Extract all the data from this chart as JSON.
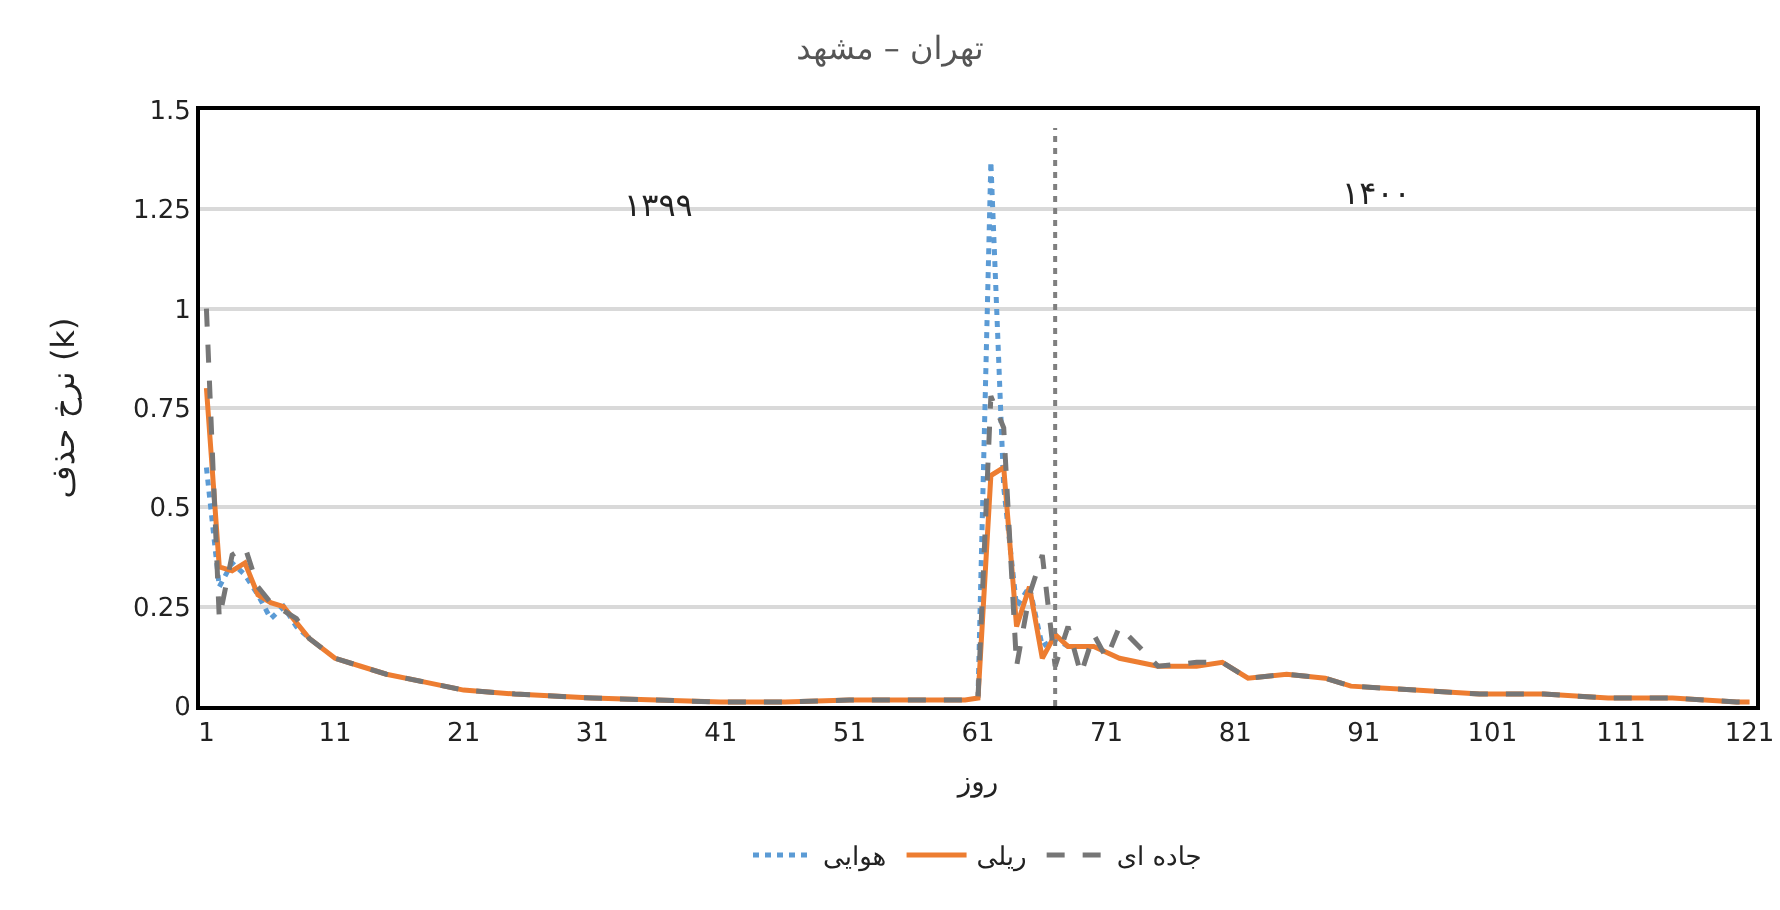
{
  "chart_data": {
    "type": "line",
    "title": "تهران – مشهد",
    "xlabel": "روز",
    "ylabel": "نرخ حذف (k)",
    "xlim": [
      0.5,
      121.5
    ],
    "xticks": [
      1,
      11,
      21,
      31,
      41,
      51,
      61,
      71,
      81,
      91,
      101,
      111,
      121
    ],
    "ylim": [
      0,
      1.5
    ],
    "yticks": [
      0,
      0.25,
      0.5,
      0.75,
      1,
      1.25,
      1.5
    ],
    "grid": "y",
    "legend": "bottom",
    "marker": "none",
    "ref_lines": [
      {
        "axis": "x",
        "value": 67,
        "label": null,
        "color": "#7f7f7f",
        "line_style": "dotted"
      }
    ],
    "annotations": [
      "۱۳۹۹",
      "۱۴۰۰"
    ],
    "series": [
      {
        "name": "هوایی",
        "color": "#5b9bd5",
        "line_style": "dotted",
        "x": [
          1,
          2,
          3,
          4,
          5,
          6,
          7,
          8,
          9,
          11,
          61,
          62,
          63,
          64,
          65,
          66,
          67,
          68
        ],
        "values": [
          0.6,
          0.3,
          0.36,
          0.33,
          0.28,
          0.22,
          0.25,
          0.2,
          0.17,
          null,
          0.02,
          1.37,
          0.55,
          0.25,
          0.3,
          0.15,
          0.17,
          0.15
        ]
      },
      {
        "name": "ریلی",
        "color": "#ed7d31",
        "line_style": "solid",
        "x": [
          1,
          2,
          3,
          4,
          5,
          6,
          7,
          8,
          9,
          11,
          13,
          15,
          18,
          21,
          25,
          31,
          36,
          41,
          46,
          51,
          56,
          60,
          61,
          62,
          63,
          64,
          65,
          66,
          67,
          68,
          70,
          72,
          75,
          78,
          80,
          82,
          85,
          88,
          90,
          95,
          100,
          105,
          110,
          115,
          120,
          121
        ],
        "values": [
          0.8,
          0.35,
          0.34,
          0.36,
          0.28,
          0.26,
          0.25,
          0.21,
          0.17,
          0.12,
          0.1,
          0.08,
          0.06,
          0.04,
          0.03,
          0.02,
          0.015,
          0.01,
          0.01,
          0.015,
          0.015,
          0.015,
          0.02,
          0.58,
          0.6,
          0.2,
          0.3,
          0.12,
          0.18,
          0.15,
          0.15,
          0.12,
          0.1,
          0.1,
          0.11,
          0.07,
          0.08,
          0.07,
          0.05,
          0.04,
          0.03,
          0.03,
          0.02,
          0.02,
          0.01,
          0.01
        ]
      },
      {
        "name": "جاده ای",
        "color": "#767676",
        "line_style": "dashed",
        "x": [
          1,
          2,
          3,
          4,
          5,
          6,
          7,
          8,
          9,
          11,
          13,
          15,
          18,
          21,
          25,
          31,
          36,
          41,
          46,
          51,
          56,
          60,
          61,
          62,
          63,
          64,
          65,
          66,
          67,
          68,
          69,
          70,
          71,
          72,
          75,
          78,
          80,
          82,
          85,
          88,
          90,
          95,
          100,
          105,
          110,
          115,
          120,
          121
        ],
        "values": [
          1.0,
          0.22,
          0.38,
          0.4,
          0.3,
          0.26,
          0.24,
          0.22,
          0.17,
          0.12,
          0.1,
          0.08,
          0.06,
          0.04,
          0.03,
          0.02,
          0.015,
          0.01,
          0.01,
          0.015,
          0.015,
          0.015,
          0.02,
          0.78,
          0.7,
          0.1,
          0.28,
          0.38,
          0.1,
          0.2,
          0.08,
          0.18,
          0.12,
          0.2,
          0.1,
          0.11,
          0.11,
          0.07,
          0.08,
          0.07,
          0.05,
          0.04,
          0.03,
          0.03,
          0.02,
          0.02,
          0.01,
          0.01
        ]
      }
    ]
  }
}
